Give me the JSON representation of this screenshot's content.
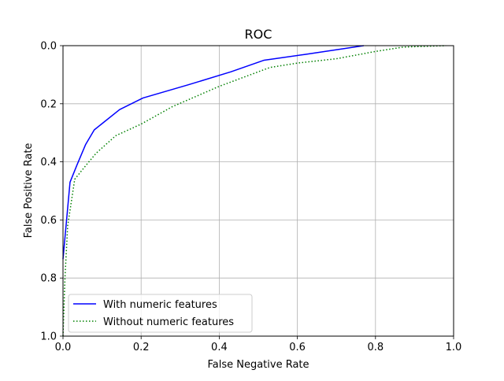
{
  "chart_data": {
    "type": "line",
    "title": "ROC",
    "xlabel": "False Negative Rate",
    "ylabel": "False Positive Rate",
    "xlim": [
      0.0,
      1.0
    ],
    "ylim": [
      0.0,
      1.0
    ],
    "y_inverted": true,
    "grid": true,
    "legend_position": "lower-left",
    "xticks": [
      0.0,
      0.2,
      0.4,
      0.6,
      0.8,
      1.0
    ],
    "yticks": [
      0.0,
      0.2,
      0.4,
      0.6,
      0.8,
      1.0
    ],
    "xtick_labels": [
      "0.0",
      "0.2",
      "0.4",
      "0.6",
      "0.8",
      "1.0"
    ],
    "ytick_labels": [
      "0.0",
      "0.2",
      "0.4",
      "0.6",
      "0.8",
      "1.0"
    ],
    "series": [
      {
        "name": "With numeric features",
        "color": "#0000ff",
        "style": "solid",
        "x": [
          0.0,
          0.018,
          0.036,
          0.058,
          0.08,
          0.145,
          0.205,
          0.32,
          0.43,
          0.515,
          0.62,
          0.77
        ],
        "y": [
          0.735,
          0.47,
          0.41,
          0.34,
          0.29,
          0.22,
          0.18,
          0.135,
          0.09,
          0.05,
          0.03,
          0.0
        ]
      },
      {
        "name": "Without numeric features",
        "color": "#008000",
        "style": "dotted",
        "x": [
          0.0,
          0.005,
          0.012,
          0.03,
          0.06,
          0.085,
          0.135,
          0.2,
          0.28,
          0.4,
          0.5,
          0.53,
          0.6,
          0.7,
          0.8,
          0.87,
          0.98
        ],
        "y": [
          1.0,
          0.8,
          0.62,
          0.46,
          0.41,
          0.37,
          0.31,
          0.27,
          0.21,
          0.14,
          0.09,
          0.075,
          0.06,
          0.045,
          0.02,
          0.005,
          0.0
        ]
      }
    ]
  }
}
